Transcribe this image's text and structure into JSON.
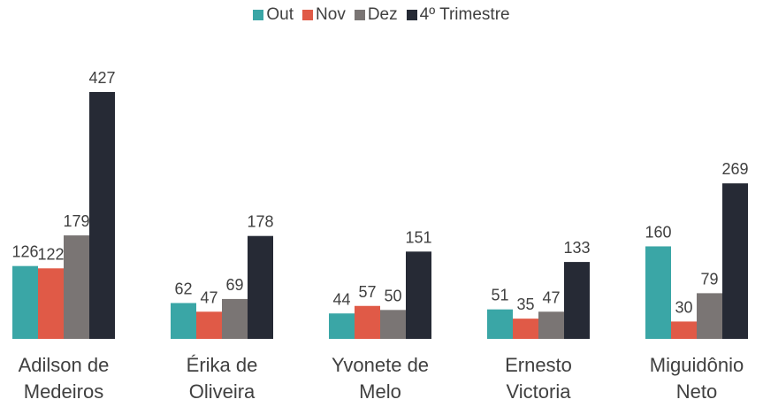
{
  "chart_data": {
    "type": "bar",
    "categories": [
      "Adilson de Medeiros",
      "Érika de Oliveira",
      "Yvonete de Melo",
      "Ernesto Victoria",
      "Miguidônio Neto"
    ],
    "series": [
      {
        "name": "Out",
        "color": "#3aa6a6",
        "values": [
          126,
          62,
          44,
          51,
          160
        ]
      },
      {
        "name": "Nov",
        "color": "#e05a47",
        "values": [
          122,
          47,
          57,
          35,
          30
        ]
      },
      {
        "name": "Dez",
        "color": "#7a7574",
        "values": [
          179,
          69,
          50,
          47,
          79
        ]
      },
      {
        "name": "4º Trimestre",
        "color": "#262a35",
        "values": [
          427,
          178,
          151,
          133,
          269
        ]
      }
    ]
  }
}
